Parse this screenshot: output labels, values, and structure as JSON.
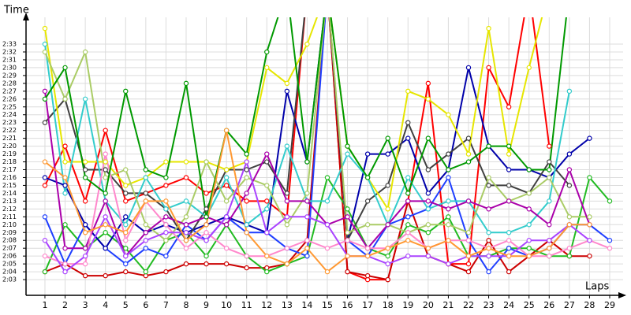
{
  "chart_data": {
    "type": "line",
    "x_label": "Laps",
    "y_label": "Time",
    "x": [
      1,
      2,
      3,
      4,
      5,
      6,
      7,
      8,
      9,
      10,
      11,
      12,
      13,
      14,
      15,
      16,
      17,
      18,
      19,
      20,
      21,
      22,
      23,
      24,
      25,
      26,
      27,
      28,
      29
    ],
    "xlim": [
      0,
      29.7
    ],
    "xticks": [
      1,
      2,
      3,
      4,
      5,
      6,
      7,
      8,
      9,
      10,
      11,
      12,
      13,
      14,
      15,
      16,
      17,
      18,
      19,
      20,
      21,
      22,
      23,
      24,
      25,
      26,
      27,
      28,
      29
    ],
    "ylim": [
      121,
      156
    ],
    "yticks": [
      {
        "value": 123,
        "label": "2:03"
      },
      {
        "value": 124,
        "label": "2:04"
      },
      {
        "value": 125,
        "label": "2:05"
      },
      {
        "value": 126,
        "label": "2:06"
      },
      {
        "value": 127,
        "label": "2:07"
      },
      {
        "value": 128,
        "label": "2:08"
      },
      {
        "value": 129,
        "label": "2:09"
      },
      {
        "value": 130,
        "label": "2:10"
      },
      {
        "value": 131,
        "label": "2:11"
      },
      {
        "value": 132,
        "label": "2:12"
      },
      {
        "value": 133,
        "label": "2:13"
      },
      {
        "value": 134,
        "label": "2:14"
      },
      {
        "value": 135,
        "label": "2:15"
      },
      {
        "value": 136,
        "label": "2:16"
      },
      {
        "value": 137,
        "label": "2:17"
      },
      {
        "value": 138,
        "label": "2:18"
      },
      {
        "value": 139,
        "label": "2:19"
      },
      {
        "value": 140,
        "label": "2:20"
      },
      {
        "value": 141,
        "label": "2:21"
      },
      {
        "value": 142,
        "label": "2:22"
      },
      {
        "value": 143,
        "label": "2:23"
      },
      {
        "value": 144,
        "label": "2:24"
      },
      {
        "value": 145,
        "label": "2:25"
      },
      {
        "value": 146,
        "label": "2:26"
      },
      {
        "value": 147,
        "label": "2:27"
      },
      {
        "value": 148,
        "label": "2:28"
      },
      {
        "value": 149,
        "label": "2:29"
      },
      {
        "value": 150,
        "label": "2:30"
      },
      {
        "value": 151,
        "label": "2:31"
      },
      {
        "value": 152,
        "label": "2:32"
      },
      {
        "value": 153,
        "label": "2:33"
      }
    ],
    "grid": true,
    "series": [
      {
        "color": "#ff0000",
        "values": [
          135,
          140,
          133,
          142,
          133,
          134,
          135,
          136,
          134,
          135,
          133,
          133,
          131,
          160,
          160,
          124,
          123,
          123,
          133,
          148,
          125,
          125,
          150,
          145,
          160,
          140,
          null,
          null,
          null
        ]
      },
      {
        "color": "#cc0000",
        "values": [
          124,
          125,
          123.5,
          123.5,
          124,
          123.5,
          124,
          125,
          125,
          125,
          124.5,
          124.5,
          125,
          128,
          160,
          124,
          123.5,
          123,
          133,
          126,
          125,
          124,
          128,
          124,
          126,
          128,
          126,
          126,
          null
        ]
      },
      {
        "color": "#22bb22",
        "values": [
          124,
          130,
          127,
          129,
          127,
          124,
          128,
          129,
          126,
          130,
          126,
          124,
          125,
          126,
          136,
          132,
          127,
          126,
          130,
          129,
          131,
          126,
          126,
          127,
          127,
          126,
          126,
          136,
          133
        ]
      },
      {
        "color": "#1f3fff",
        "values": [
          131,
          125,
          130,
          127,
          125,
          127,
          126,
          130,
          128,
          131,
          129,
          129,
          127,
          126,
          160,
          128,
          126,
          130,
          131,
          132,
          136,
          128,
          124,
          127,
          126,
          127,
          130,
          130,
          128
        ]
      },
      {
        "color": "#0000aa",
        "values": [
          136,
          135,
          130,
          127,
          131,
          129,
          130,
          129,
          130,
          131,
          130,
          129,
          147,
          138,
          160,
          128,
          139,
          139,
          141,
          134,
          137,
          150,
          140,
          137,
          137,
          136,
          139,
          141,
          null
        ]
      },
      {
        "color": "#404040",
        "values": [
          143,
          146,
          137,
          137,
          134,
          134,
          132,
          128,
          132,
          137,
          137,
          138,
          134,
          160,
          160,
          128,
          133,
          135,
          143,
          137,
          139,
          141,
          135,
          135,
          134,
          138,
          135,
          null,
          null
        ]
      },
      {
        "color": "#e6e600",
        "values": [
          155,
          138,
          138,
          138,
          135,
          136,
          138,
          138,
          138,
          137,
          138,
          150,
          148,
          153,
          160,
          140,
          136,
          132,
          147,
          146,
          144,
          139,
          155,
          139,
          150,
          160,
          null,
          null,
          null
        ]
      },
      {
        "color": "#33cccc",
        "values": [
          153,
          134,
          146,
          133,
          130,
          136,
          132,
          133,
          131,
          136,
          130,
          132,
          140,
          133,
          133,
          139,
          136,
          130,
          136,
          132,
          133,
          133,
          129,
          129,
          130,
          133,
          147,
          null,
          null
        ]
      },
      {
        "color": "#aacc66",
        "values": [
          152,
          146,
          152,
          136,
          137,
          130,
          128,
          131,
          138,
          133,
          136,
          135,
          130,
          134,
          160,
          129,
          130,
          130,
          129,
          130,
          130,
          129,
          136,
          133,
          134,
          136,
          131,
          131,
          null
        ]
      },
      {
        "color": "#aa00aa",
        "values": [
          147,
          127,
          127,
          133,
          126,
          129,
          131,
          130,
          131,
          130,
          134,
          139,
          133,
          133,
          130,
          131,
          127,
          130,
          133,
          133,
          132,
          133,
          132,
          133,
          132,
          130,
          137,
          130,
          null
        ]
      },
      {
        "color": "#ff88cc",
        "values": [
          126,
          125,
          125,
          139,
          128,
          133,
          130,
          127,
          129,
          127,
          126,
          126,
          127,
          128,
          127,
          128,
          127,
          127,
          129,
          127,
          128,
          128,
          127,
          128,
          126,
          126,
          127,
          128,
          127
        ]
      },
      {
        "color": "#009900",
        "values": [
          146,
          150,
          136,
          134,
          147,
          137,
          136,
          148,
          131,
          142,
          139,
          152,
          160,
          138,
          160,
          140,
          136,
          141,
          134,
          141,
          137,
          138,
          140,
          140,
          137,
          137,
          160,
          null,
          null
        ]
      },
      {
        "color": "#aa44ff",
        "values": [
          128,
          124,
          126,
          131,
          126,
          128,
          129,
          129,
          128,
          131,
          138,
          129,
          131,
          131,
          130,
          126,
          126,
          125,
          126,
          126,
          125,
          126,
          126,
          126,
          128,
          128,
          130,
          128,
          null
        ]
      },
      {
        "color": "#ff9933",
        "values": [
          138,
          136,
          129,
          130,
          129,
          133,
          133,
          128,
          130,
          142,
          129,
          126,
          125,
          127,
          124,
          126,
          126,
          127,
          128,
          127,
          128,
          126,
          127,
          126,
          126,
          127,
          130,
          130,
          null
        ]
      }
    ]
  }
}
